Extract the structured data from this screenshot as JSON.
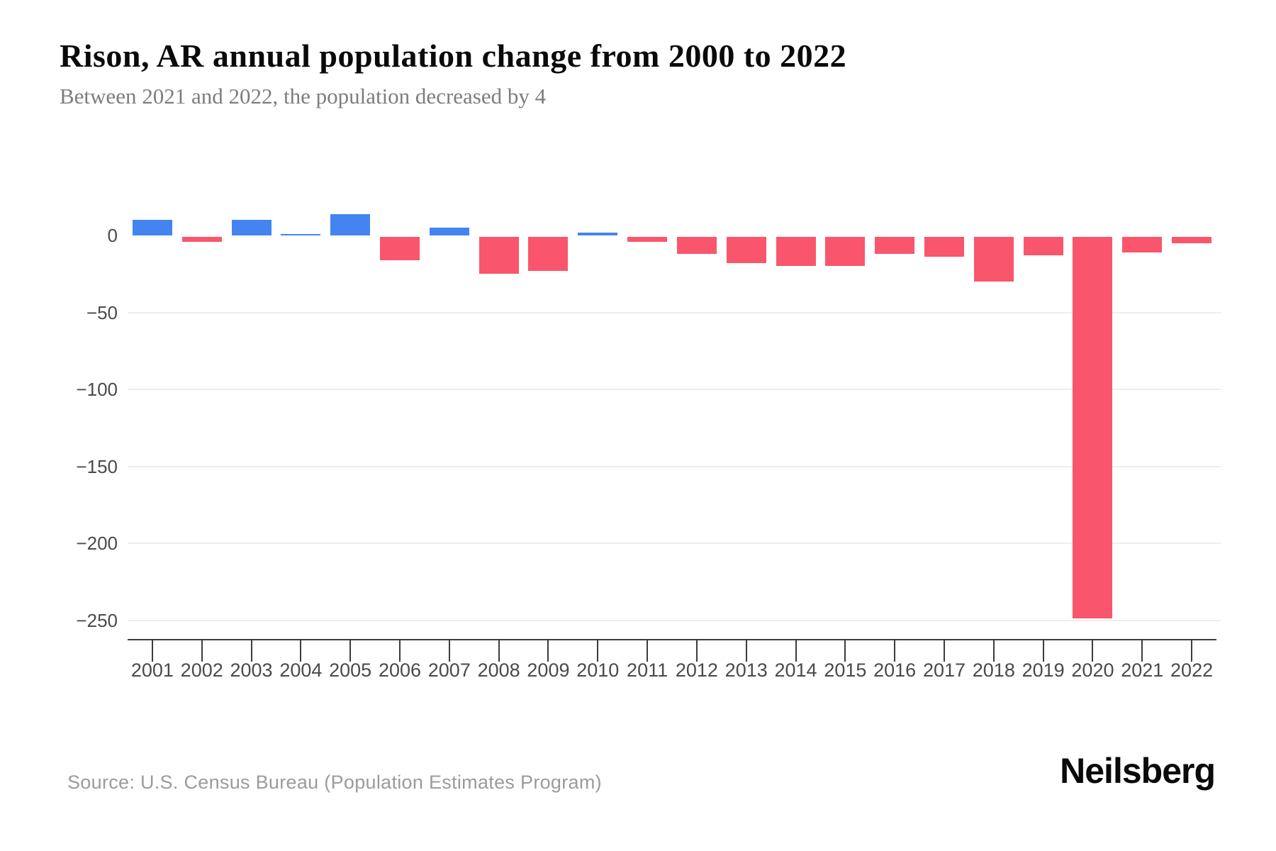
{
  "header": {
    "title": "Rison, AR annual population change from 2000 to 2022",
    "subtitle": "Between 2021 and 2022, the population decreased by 4"
  },
  "footer": {
    "source": "Source: U.S. Census Bureau (Population Estimates Program)",
    "brand": "Neilsberg"
  },
  "colors": {
    "positive_bar": "#4484f0",
    "negative_bar": "#f9566d",
    "gridline": "#ededed",
    "axis": "#3c3c3c",
    "tick_label": "#4a4a4a",
    "title": "#0a0a0a",
    "subtitle": "#7d7d7d",
    "source": "#9b9b9b"
  },
  "chart_data": {
    "type": "bar",
    "title": "Rison, AR annual population change from 2000 to 2022",
    "subtitle": "Between 2021 and 2022, the population decreased by 4",
    "xlabel": "",
    "ylabel": "",
    "categories": [
      "2001",
      "2002",
      "2003",
      "2004",
      "2005",
      "2006",
      "2007",
      "2008",
      "2009",
      "2010",
      "2011",
      "2012",
      "2013",
      "2014",
      "2015",
      "2016",
      "2017",
      "2018",
      "2019",
      "2020",
      "2021",
      "2022"
    ],
    "values": [
      10,
      -3,
      10,
      1,
      14,
      -15,
      5,
      -24,
      -22,
      2,
      -3,
      -11,
      -17,
      -19,
      -19,
      -11,
      -13,
      -29,
      -12,
      -248,
      -10,
      -4
    ],
    "yticks": [
      0,
      -50,
      -100,
      -150,
      -200,
      -250
    ],
    "ytick_labels": [
      "0",
      "−50",
      "−100",
      "−150",
      "−200",
      "−250"
    ],
    "ylim": [
      -260,
      20
    ],
    "grid": "horizontal-below-zero-only",
    "legend": "none",
    "color_rule": "positive values blue, negative values red"
  }
}
